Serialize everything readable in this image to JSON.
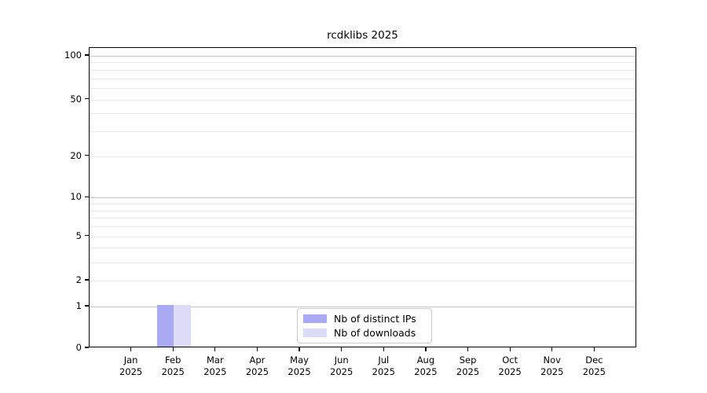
{
  "chart_data": {
    "type": "bar",
    "title": "rcdklibs 2025",
    "categories": [
      "Jan",
      "Feb",
      "Mar",
      "Apr",
      "May",
      "Jun",
      "Jul",
      "Aug",
      "Sep",
      "Oct",
      "Nov",
      "Dec"
    ],
    "category_year": "2025",
    "series": [
      {
        "name": "Nb of distinct IPs",
        "color": "#a9a9f4",
        "values": [
          0,
          1,
          0,
          0,
          0,
          0,
          0,
          0,
          0,
          0,
          0,
          0
        ]
      },
      {
        "name": "Nb of downloads",
        "color": "#dcdcf8",
        "values": [
          0,
          1,
          0,
          0,
          0,
          0,
          0,
          0,
          0,
          0,
          0,
          0
        ]
      }
    ],
    "xlabel": "",
    "ylabel": "",
    "y_axis": {
      "scale": "symlog",
      "ticks": [
        0,
        1,
        2,
        5,
        10,
        20,
        50,
        100
      ],
      "ylim": [
        0,
        113
      ]
    },
    "grid": {
      "on": true,
      "major_values": [
        1,
        10,
        100
      ],
      "minor_values": [
        2,
        3,
        4,
        5,
        6,
        7,
        8,
        9,
        20,
        30,
        40,
        50,
        60,
        70,
        80,
        90
      ],
      "major_color": "#c6c6c6",
      "minor_color": "#eaeaea"
    },
    "legend": {
      "position": "lower center",
      "entries": [
        "Nb of distinct IPs",
        "Nb of downloads"
      ]
    },
    "colors": {
      "axis": "#000000",
      "background": "#ffffff",
      "legend_border": "#cccccc"
    }
  }
}
